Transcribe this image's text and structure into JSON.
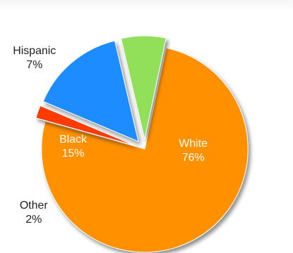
{
  "chart_data": {
    "type": "pie",
    "title": "",
    "slices": [
      {
        "label": "White",
        "value": 76,
        "value_label": "76%",
        "color": "#ff9000",
        "exploded": false,
        "label_position": "inside"
      },
      {
        "label": "Other",
        "value": 2,
        "value_label": "2%",
        "color": "#ff3a00",
        "exploded": true,
        "label_position": "outside"
      },
      {
        "label": "Black",
        "value": 15,
        "value_label": "15%",
        "color": "#1a8cff",
        "exploded": true,
        "label_position": "inside"
      },
      {
        "label": "Hispanic",
        "value": 7,
        "value_label": "7%",
        "color": "#92e05a",
        "exploded": true,
        "label_position": "outside"
      }
    ],
    "legend": "none",
    "shadow": true
  }
}
